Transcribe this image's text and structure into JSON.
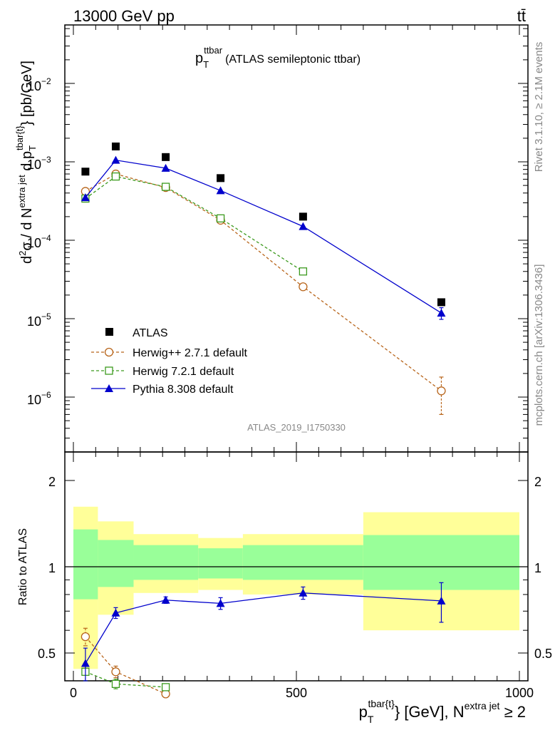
{
  "header": {
    "left": "13000 GeV pp",
    "right": "tt̄"
  },
  "side_labels": {
    "rivet": "Rivet 3.1.10, ≥ 2.1M events",
    "mcplots": "mcplots.cern.ch [arXiv:1306.3436]"
  },
  "plot_title": {
    "main": "p",
    "sub": "T",
    "sup": "ttbar",
    "rest": "(ATLAS semileptonic ttbar)"
  },
  "analysis_id": "ATLAS_2019_I1750330",
  "y_axis_label": {
    "part1": "d",
    "part1_sup": "2",
    "part2": "σ / d N",
    "part2_sup": "extra jet",
    "part3": " d p",
    "part3_sub": "T",
    "part3_sup": "tbar{t}",
    "part4": "} [pb/GeV]"
  },
  "ratio_y_label": "Ratio to ATLAS",
  "x_axis_label": {
    "part1": "p",
    "part1_sub": "T",
    "part1_sup": "tbar{t}",
    "part2": "} [GeV], N",
    "part2_sup": "extra jet",
    "part3": " ≥ 2"
  },
  "main_ticks": [
    {
      "base": "10",
      "exp": "−2"
    },
    {
      "base": "10",
      "exp": "−3"
    },
    {
      "base": "10",
      "exp": "−4"
    },
    {
      "base": "10",
      "exp": "−5"
    },
    {
      "base": "10",
      "exp": "−6"
    }
  ],
  "ratio_ticks": [
    "2",
    "1",
    "0.5"
  ],
  "x_ticks": [
    "0",
    "500",
    "1000"
  ],
  "legend": [
    {
      "label": "ATLAS",
      "marker": "square-filled"
    },
    {
      "label": "Herwig++ 2.7.1 default",
      "marker": "circle-open"
    },
    {
      "label": "Herwig 7.2.1 default",
      "marker": "square-open"
    },
    {
      "label": "Pythia 8.308 default",
      "marker": "triangle-filled"
    }
  ],
  "colors": {
    "atlas": "#000000",
    "herwigpp": "#b8651b",
    "herwig7": "#3c9a1e",
    "pythia": "#0000cc",
    "band_inner": "#99ff99",
    "band_outer": "#ffff99"
  },
  "chart_data": {
    "type": "scatter",
    "x_unit": "GeV",
    "xlim": [
      -20,
      1000
    ],
    "ylim_main": [
      2e-07,
      0.06
    ],
    "yscale_main": "log",
    "ylim_ratio": [
      0.4,
      2.3
    ],
    "yscale_ratio": "log",
    "x": [
      27,
      95,
      207,
      330,
      515,
      825
    ],
    "bin_edges": [
      0,
      55,
      135,
      280,
      380,
      650,
      1000
    ],
    "series": [
      {
        "name": "ATLAS",
        "values": [
          0.00075,
          0.00157,
          0.00115,
          0.00062,
          0.0002,
          1.62e-05
        ]
      },
      {
        "name": "Herwig++ 2.7.1 default",
        "values": [
          0.00042,
          0.0007,
          0.00047,
          0.00018,
          2.55e-05,
          1.2e-06
        ],
        "errors": [
          0,
          0,
          0,
          0,
          0,
          6e-07
        ]
      },
      {
        "name": "Herwig 7.2.1 default",
        "values": [
          0.00034,
          0.00065,
          0.00048,
          0.00019,
          4e-05
        ],
        "errors": [
          0,
          0,
          0,
          0,
          0
        ]
      },
      {
        "name": "Pythia 8.308 default",
        "values": [
          0.00035,
          0.00105,
          0.00083,
          0.00043,
          0.00015,
          1.18e-05
        ],
        "errors": [
          0,
          0,
          0,
          0,
          0,
          2e-06
        ]
      }
    ],
    "ratio_bands": {
      "inner_low": [
        0.77,
        0.85,
        0.9,
        0.91,
        0.9,
        0.83
      ],
      "inner_high": [
        1.35,
        1.24,
        1.19,
        1.16,
        1.19,
        1.29
      ],
      "outer_low": [
        0.44,
        0.68,
        0.81,
        0.83,
        0.8,
        0.6
      ],
      "outer_high": [
        1.62,
        1.44,
        1.3,
        1.26,
        1.3,
        1.55
      ]
    },
    "ratio_series": [
      {
        "name": "Herwig++ 2.7.1 default",
        "values": [
          0.57,
          0.43,
          0.36
        ],
        "errors": [
          0.04,
          0.02,
          0.01
        ]
      },
      {
        "name": "Herwig 7.2.1 default",
        "values": [
          0.43,
          0.39,
          0.38
        ],
        "errors": [
          0.03,
          0.015,
          0.01
        ]
      },
      {
        "name": "Pythia 8.308 default",
        "values": [
          0.46,
          0.69,
          0.765,
          0.745,
          0.81,
          0.76
        ],
        "errors": [
          0.06,
          0.03,
          0.02,
          0.035,
          0.04,
          0.12
        ]
      }
    ]
  }
}
